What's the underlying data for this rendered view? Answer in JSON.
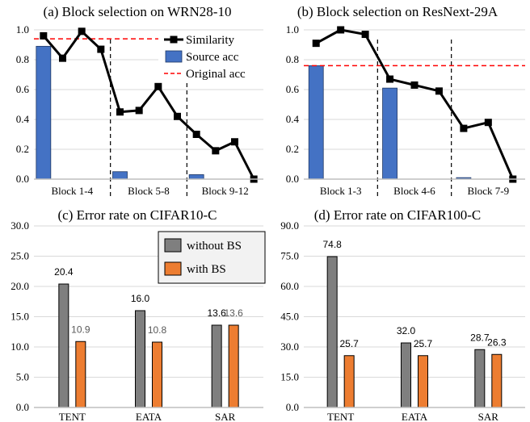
{
  "colors": {
    "similarity": "#000000",
    "source_acc": "#4472C4",
    "original_acc": "#FF0000",
    "without_bs": "#7F7F7F",
    "with_bs": "#ED7D31"
  },
  "chart_data": [
    {
      "type": "bar",
      "title": "(a) Block selection on WRN28-10",
      "ylim": [
        0,
        1.0
      ],
      "yticks": [
        "0.0",
        "0.2",
        "0.4",
        "0.6",
        "0.8",
        "1.0"
      ],
      "groups": [
        "Block 1-4",
        "Block 5-8",
        "Block 9-12"
      ],
      "legend": [
        "Similarity",
        "Source acc",
        "Original acc"
      ],
      "legend_position": "top-right",
      "series": [
        {
          "name": "Similarity",
          "kind": "line",
          "values": [
            0.96,
            0.81,
            0.99,
            0.87,
            0.45,
            0.46,
            0.62,
            0.42,
            0.3,
            0.19,
            0.25,
            0.0
          ]
        },
        {
          "name": "Source acc",
          "kind": "bar",
          "values": [
            0.89,
            0.05,
            0.03
          ]
        },
        {
          "name": "Original acc",
          "kind": "hline",
          "value": 0.94
        }
      ]
    },
    {
      "type": "bar",
      "title": "(b) Block selection on ResNext-29A",
      "ylim": [
        0,
        1.0
      ],
      "yticks": [
        "0.0",
        "0.2",
        "0.4",
        "0.6",
        "0.8",
        "1.0"
      ],
      "groups": [
        "Block 1-3",
        "Block 4-6",
        "Block 7-9"
      ],
      "series": [
        {
          "name": "Similarity",
          "kind": "line",
          "values": [
            0.91,
            1.0,
            0.97,
            0.67,
            0.63,
            0.59,
            0.34,
            0.38,
            0.0
          ]
        },
        {
          "name": "Source acc",
          "kind": "bar",
          "values": [
            0.76,
            0.61,
            0.01
          ]
        },
        {
          "name": "Original acc",
          "kind": "hline",
          "value": 0.76
        }
      ]
    },
    {
      "type": "bar",
      "title": "(c) Error rate on CIFAR10-C",
      "ylim": [
        0,
        30
      ],
      "yticks": [
        "0.0",
        "5.0",
        "10.0",
        "15.0",
        "20.0",
        "25.0",
        "30.0"
      ],
      "categories": [
        "TENT",
        "EATA",
        "SAR"
      ],
      "legend": [
        "without BS",
        "with BS"
      ],
      "legend_position": "top-right",
      "series": [
        {
          "name": "without BS",
          "values": [
            20.4,
            16.0,
            13.6
          ],
          "labels": [
            "20.4",
            "16.0",
            "13.6"
          ]
        },
        {
          "name": "with BS",
          "values": [
            10.9,
            10.8,
            13.6
          ],
          "labels": [
            "10.9",
            "10.8",
            "13.6"
          ]
        }
      ]
    },
    {
      "type": "bar",
      "title": "(d) Error rate on CIFAR100-C",
      "ylim": [
        0,
        90
      ],
      "yticks": [
        "0.0",
        "15.0",
        "30.0",
        "45.0",
        "60.0",
        "75.0",
        "90.0"
      ],
      "categories": [
        "TENT",
        "EATA",
        "SAR"
      ],
      "series": [
        {
          "name": "without BS",
          "values": [
            74.8,
            32.0,
            28.7
          ],
          "labels": [
            "74.8",
            "32.0",
            "28.7"
          ]
        },
        {
          "name": "with BS",
          "values": [
            25.7,
            25.7,
            26.3
          ],
          "labels": [
            "25.7",
            "25.7",
            "26.3"
          ]
        }
      ]
    }
  ]
}
